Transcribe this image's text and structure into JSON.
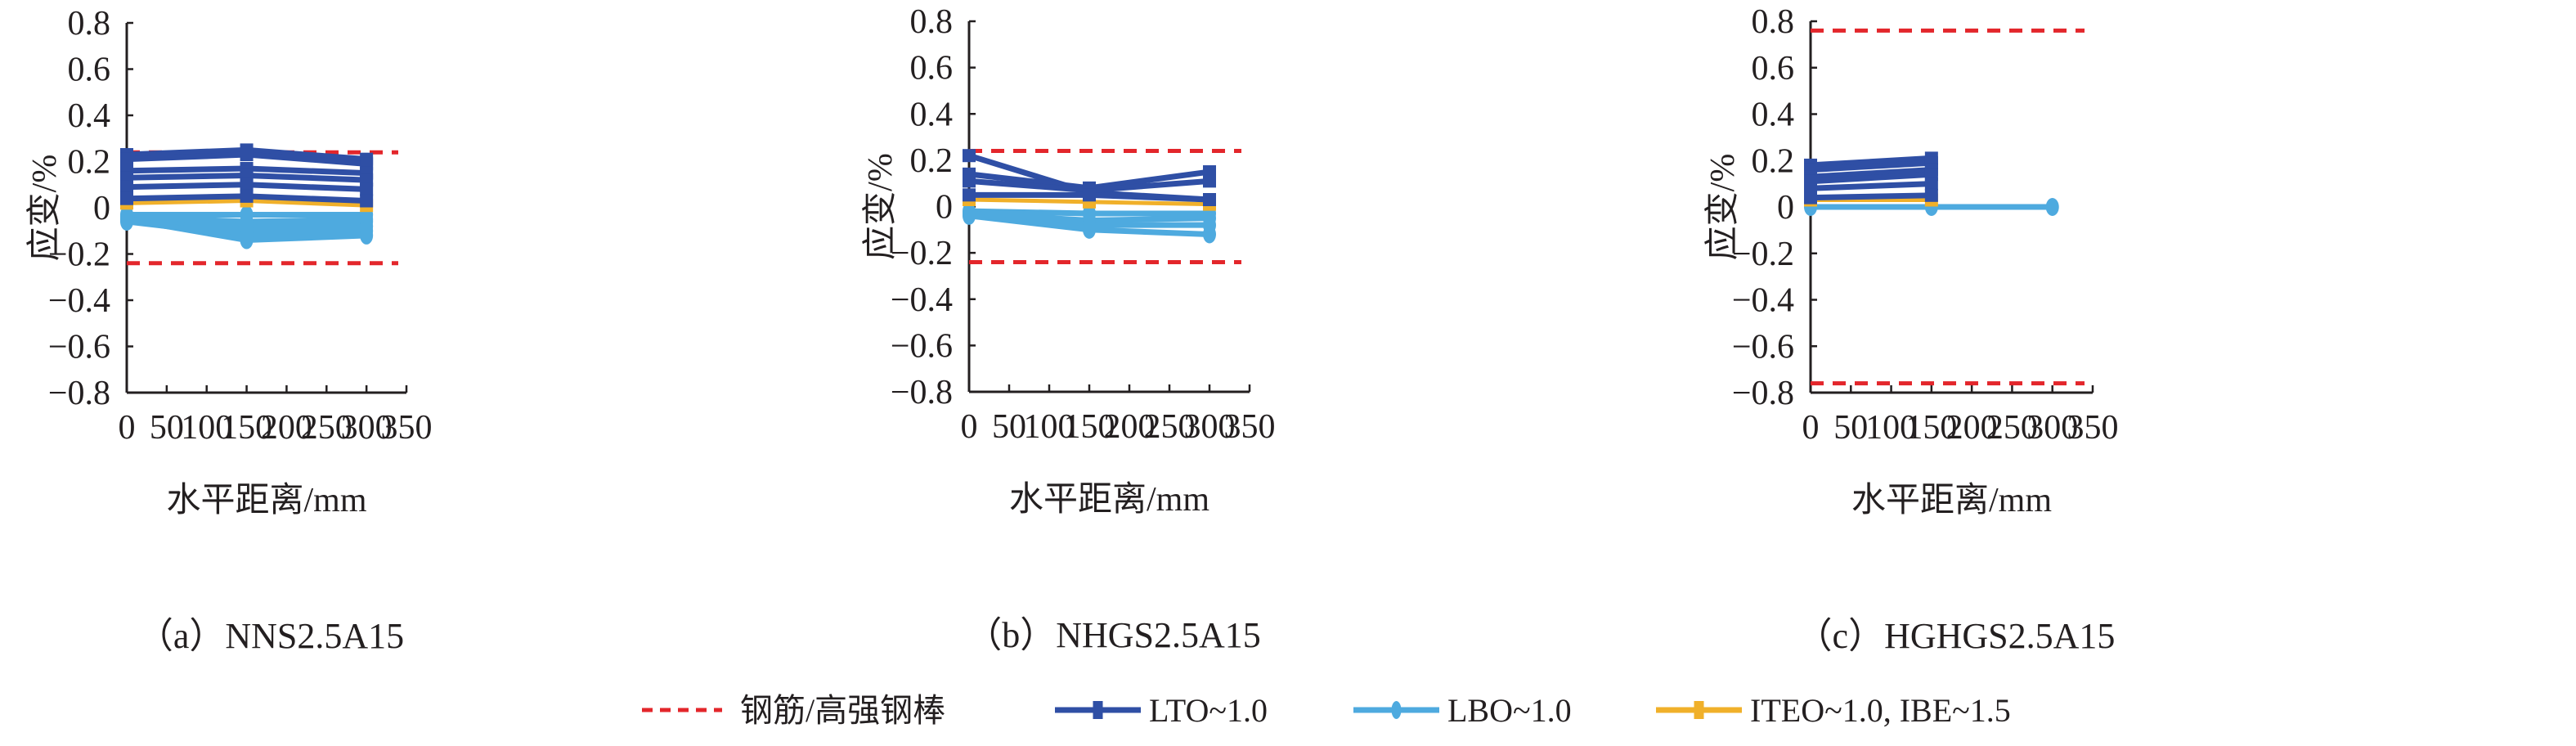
{
  "colors": {
    "limit": "#e3262b",
    "LTO": "#2f4fa5",
    "LBO": "#4eaadf",
    "ITEO": "#f0b02a",
    "axis": "#231f20"
  },
  "legend": [
    {
      "key": "limit",
      "label": "钢筋/高强钢棒",
      "style": "dashed"
    },
    {
      "key": "LTO",
      "label": "LTO~1.0",
      "marker": "square"
    },
    {
      "key": "LBO",
      "label": "LBO~1.0",
      "marker": "circle"
    },
    {
      "key": "ITEO",
      "label": "ITEO~1.0, IBE~1.5",
      "marker": "square"
    }
  ],
  "chart_data": [
    {
      "type": "line",
      "caption": "（a）NNS2.5A15",
      "xlabel": "水平距离/mm",
      "ylabel": "应变/%",
      "xlim": [
        0,
        350
      ],
      "ylim": [
        -0.8,
        0.8
      ],
      "xticks": [
        "0",
        "50",
        "100",
        "150",
        "200",
        "250",
        "300",
        "350"
      ],
      "yticks": [
        "0.8",
        "0.6",
        "0.4",
        "0.2",
        "0",
        "−0.2",
        "−0.4",
        "−0.6",
        "−0.8"
      ],
      "limit_lines": [
        0.24,
        -0.24
      ],
      "x": [
        0,
        150,
        300
      ],
      "series": [
        {
          "group": "LTO",
          "values": [
            0.23,
            0.25,
            0.21
          ]
        },
        {
          "group": "LTO",
          "values": [
            0.21,
            0.23,
            0.19
          ]
        },
        {
          "group": "LTO",
          "values": [
            0.16,
            0.17,
            0.15
          ]
        },
        {
          "group": "LTO",
          "values": [
            0.13,
            0.14,
            0.12
          ]
        },
        {
          "group": "LTO",
          "values": [
            0.09,
            0.1,
            0.08
          ]
        },
        {
          "group": "LTO",
          "values": [
            0.04,
            0.05,
            0.03
          ]
        },
        {
          "group": "ITEO",
          "values": [
            0.02,
            0.03,
            0.01
          ]
        },
        {
          "group": "LBO",
          "values": [
            -0.03,
            -0.03,
            -0.03
          ]
        },
        {
          "group": "LBO",
          "values": [
            -0.04,
            -0.06,
            -0.05
          ]
        },
        {
          "group": "LBO",
          "values": [
            -0.05,
            -0.08,
            -0.06
          ]
        },
        {
          "group": "LBO",
          "values": [
            -0.05,
            -0.1,
            -0.08
          ]
        },
        {
          "group": "LBO",
          "values": [
            -0.06,
            -0.12,
            -0.1
          ]
        },
        {
          "group": "LBO",
          "values": [
            -0.05,
            -0.14,
            -0.12
          ]
        }
      ]
    },
    {
      "type": "line",
      "caption": "（b）NHGS2.5A15",
      "xlabel": "水平距离/mm",
      "ylabel": "应变/%",
      "xlim": [
        0,
        350
      ],
      "ylim": [
        -0.8,
        0.8
      ],
      "xticks": [
        "0",
        "50",
        "100",
        "150",
        "200",
        "250",
        "300",
        "350"
      ],
      "yticks": [
        "0.8",
        "0.6",
        "0.4",
        "0.2",
        "0",
        "−0.2",
        "−0.4",
        "−0.6",
        "−0.8"
      ],
      "limit_lines": [
        0.24,
        -0.24
      ],
      "x": [
        0,
        150,
        300
      ],
      "series": [
        {
          "group": "LTO",
          "values": [
            0.22,
            0.06,
            0.03
          ]
        },
        {
          "group": "LTO",
          "values": [
            0.14,
            0.08,
            0.15
          ]
        },
        {
          "group": "LTO",
          "values": [
            0.11,
            0.07,
            0.11
          ]
        },
        {
          "group": "LTO",
          "values": [
            0.05,
            0.05,
            0.03
          ]
        },
        {
          "group": "ITEO",
          "values": [
            0.03,
            0.02,
            0.01
          ]
        },
        {
          "group": "LBO",
          "values": [
            -0.02,
            -0.03,
            -0.03
          ]
        },
        {
          "group": "LBO",
          "values": [
            -0.03,
            -0.06,
            -0.05
          ]
        },
        {
          "group": "LBO",
          "values": [
            -0.03,
            -0.08,
            -0.08
          ]
        },
        {
          "group": "LBO",
          "values": [
            -0.04,
            -0.1,
            -0.12
          ]
        }
      ]
    },
    {
      "type": "line",
      "caption": "（c）HGHGS2.5A15",
      "xlabel": "水平距离/mm",
      "ylabel": "应变/%",
      "xlim": [
        0,
        350
      ],
      "ylim": [
        -0.8,
        0.8
      ],
      "xticks": [
        "0",
        "50",
        "100",
        "150",
        "200",
        "250",
        "300",
        "350"
      ],
      "yticks": [
        "0.8",
        "0.6",
        "0.4",
        "0.2",
        "0",
        "−0.2",
        "−0.4",
        "−0.6",
        "−0.8"
      ],
      "limit_lines": [
        0.76,
        -0.76
      ],
      "x": [
        0,
        150,
        300
      ],
      "series": [
        {
          "group": "LTO",
          "values": [
            0.18,
            0.21,
            null
          ]
        },
        {
          "group": "LTO",
          "values": [
            0.16,
            0.19,
            null
          ]
        },
        {
          "group": "LTO",
          "values": [
            0.13,
            0.16,
            null
          ]
        },
        {
          "group": "LTO",
          "values": [
            0.11,
            0.14,
            null
          ]
        },
        {
          "group": "LTO",
          "values": [
            0.08,
            0.1,
            null
          ]
        },
        {
          "group": "LTO",
          "values": [
            0.04,
            0.05,
            null
          ]
        },
        {
          "group": "ITEO",
          "values": [
            0.03,
            0.03,
            null
          ]
        },
        {
          "group": "LBO",
          "values": [
            0.0,
            0.0,
            0.0
          ]
        }
      ]
    }
  ]
}
